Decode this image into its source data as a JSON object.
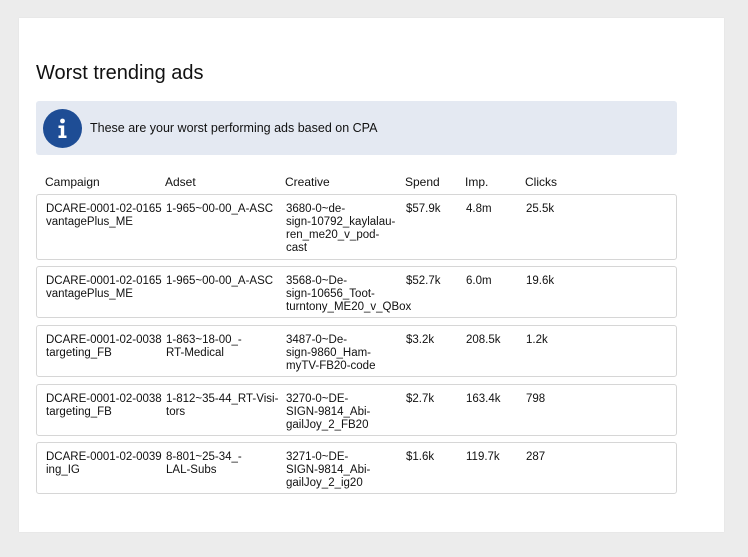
{
  "title": "Worst trending ads",
  "banner": {
    "icon": "info-icon",
    "text": "These are your worst performing ads based on CPA",
    "bg_color": "#e4e9f2",
    "icon_color": "#1e4d95"
  },
  "table": {
    "headers": {
      "campaign": "Campaign",
      "adset": "Adset",
      "creative": "Creative",
      "spend": "Spend",
      "imp": "Imp.",
      "clicks": "Clicks"
    },
    "rows": [
      {
        "campaign": "DCARE-0001-02-0165\nvantagePlus_ME",
        "adset": "1-965~00-00_A-ASC",
        "creative": "3680-0~de-\nsign-10792_kaylalau-\nren_me20_v_pod-\ncast",
        "spend": "$57.9k",
        "imp": "4.8m",
        "clicks": "25.5k"
      },
      {
        "campaign": "DCARE-0001-02-0165\nvantagePlus_ME",
        "adset": "1-965~00-00_A-ASC",
        "creative": "3568-0~De-\nsign-10656_Toot-\nturntony_ME20_v_QBox",
        "spend": "$52.7k",
        "imp": "6.0m",
        "clicks": "19.6k"
      },
      {
        "campaign": "DCARE-0001-02-0038\ntargeting_FB",
        "adset": "1-863~18-00_-\nRT-Medical",
        "creative": "3487-0~De-\nsign-9860_Ham-\nmyTV-FB20-code",
        "spend": "$3.2k",
        "imp": "208.5k",
        "clicks": "1.2k"
      },
      {
        "campaign": "DCARE-0001-02-0038\ntargeting_FB",
        "adset": "1-812~35-44_RT-Visi-\ntors",
        "creative": "3270-0~DE-\nSIGN-9814_Abi-\ngailJoy_2_FB20",
        "spend": "$2.7k",
        "imp": "163.4k",
        "clicks": "798"
      },
      {
        "campaign": "DCARE-0001-02-0039\ning_IG",
        "adset": "8-801~25-34_-\nLAL-Subs",
        "creative": "3271-0~DE-\nSIGN-9814_Abi-\ngailJoy_2_ig20",
        "spend": "$1.6k",
        "imp": "119.7k",
        "clicks": "287"
      }
    ]
  }
}
